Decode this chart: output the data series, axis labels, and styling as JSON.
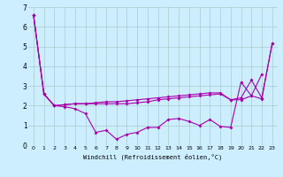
{
  "xlabel": "Windchill (Refroidissement éolien,°C)",
  "bg_color": "#cceeff",
  "line_color": "#aa00aa",
  "grid_color": "#aacccc",
  "xlim": [
    -0.5,
    23.5
  ],
  "ylim": [
    0,
    7
  ],
  "xticks": [
    0,
    1,
    2,
    3,
    4,
    5,
    6,
    7,
    8,
    9,
    10,
    11,
    12,
    13,
    14,
    15,
    16,
    17,
    18,
    19,
    20,
    21,
    22,
    23
  ],
  "yticks": [
    0,
    1,
    2,
    3,
    4,
    5,
    6,
    7
  ],
  "series1_x": [
    0,
    1,
    2,
    3,
    4,
    5,
    6,
    7,
    8,
    9,
    10,
    11,
    12,
    13,
    14,
    15,
    16,
    17,
    18,
    19,
    20,
    21,
    22
  ],
  "series1_y": [
    6.6,
    2.6,
    2.0,
    1.95,
    1.85,
    1.6,
    0.65,
    0.75,
    0.3,
    0.55,
    0.65,
    0.9,
    0.9,
    1.3,
    1.35,
    1.2,
    1.0,
    1.3,
    0.95,
    0.9,
    3.2,
    2.5,
    3.6
  ],
  "series2_x": [
    0,
    1,
    2,
    3,
    4,
    5,
    6,
    7,
    8,
    9,
    10,
    11,
    12,
    13,
    14,
    15,
    16,
    17,
    18,
    19,
    20,
    21,
    22,
    23
  ],
  "series2_y": [
    6.6,
    2.6,
    2.0,
    2.05,
    2.1,
    2.1,
    2.15,
    2.2,
    2.2,
    2.25,
    2.3,
    2.35,
    2.4,
    2.45,
    2.5,
    2.55,
    2.6,
    2.65,
    2.65,
    2.3,
    2.4,
    3.3,
    2.4,
    5.15
  ],
  "series3_x": [
    0,
    1,
    2,
    3,
    4,
    5,
    6,
    7,
    8,
    9,
    10,
    11,
    12,
    13,
    14,
    15,
    16,
    17,
    18,
    19,
    20,
    21,
    22,
    23
  ],
  "series3_y": [
    6.6,
    2.6,
    2.0,
    2.05,
    2.1,
    2.1,
    2.1,
    2.1,
    2.1,
    2.1,
    2.15,
    2.2,
    2.3,
    2.35,
    2.4,
    2.45,
    2.5,
    2.55,
    2.6,
    2.3,
    2.3,
    2.5,
    2.35,
    5.15
  ]
}
